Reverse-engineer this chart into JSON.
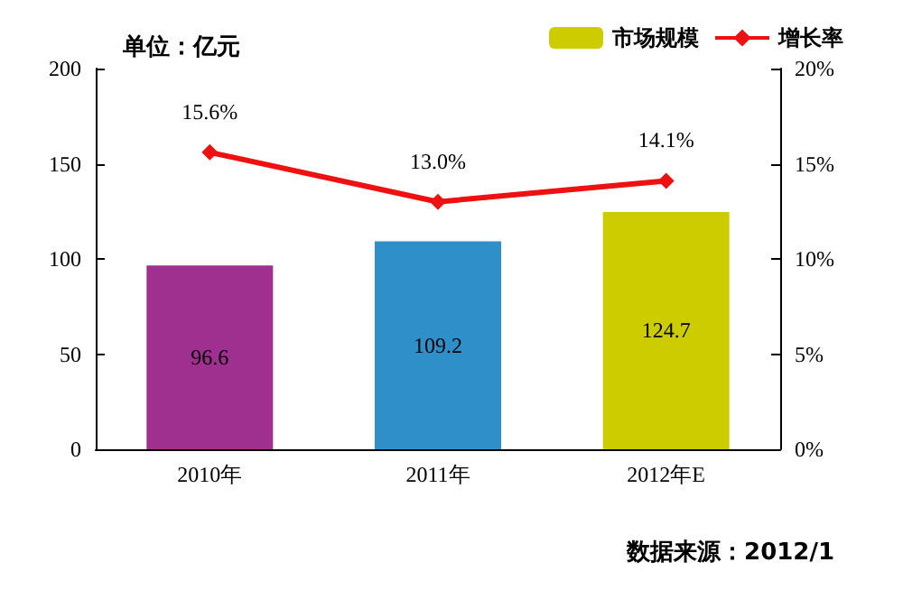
{
  "chart_data": {
    "type": "bar",
    "categories": [
      "2010年",
      "2011年",
      "2012年E"
    ],
    "series": [
      {
        "name": "市场规模",
        "color": "#cccc00",
        "colors": [
          "#a0308f",
          "#2f8fc8",
          "#cccc00"
        ],
        "values": [
          96.6,
          109.2,
          124.7
        ],
        "value_labels": [
          "96.6",
          "109.2",
          "124.7"
        ]
      },
      {
        "name": "增长率",
        "type": "line",
        "axis": "y2",
        "color": "#ee1111",
        "values": [
          15.6,
          13.0,
          14.1
        ],
        "value_labels": [
          "15.6%",
          "13.0%",
          "14.1%"
        ]
      }
    ],
    "ylim": [
      0,
      200
    ],
    "yticks": [
      0,
      50,
      100,
      150,
      200
    ],
    "y2lim": [
      0,
      20
    ],
    "y2ticks": [
      {
        "value": 0,
        "label": "0%"
      },
      {
        "value": 5,
        "label": "5%"
      },
      {
        "value": 10,
        "label": "10%"
      },
      {
        "value": 15,
        "label": "15%"
      },
      {
        "value": 20,
        "label": "20%"
      }
    ],
    "marker": "diamond",
    "legend": "top right",
    "grid": false,
    "annotations": [
      "单位：亿元",
      "数据来源：2012/1"
    ]
  }
}
